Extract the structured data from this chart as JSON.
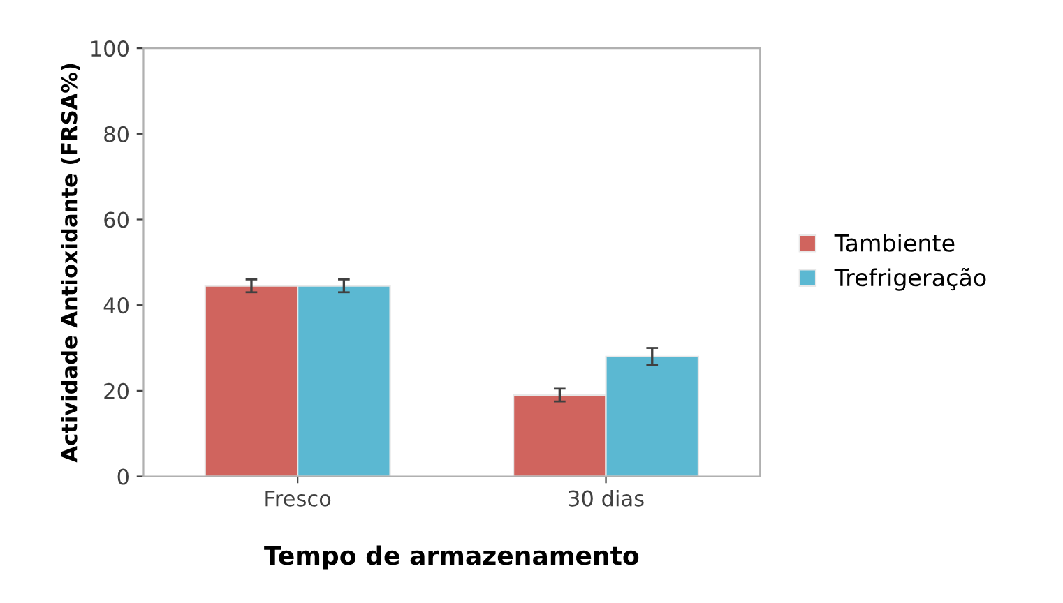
{
  "chart_data": {
    "type": "bar",
    "xlabel": "Tempo de armazenamento",
    "ylabel": "Actividade Antioxidante (FRSA%)",
    "categories": [
      "Fresco",
      "30 dias"
    ],
    "series": [
      {
        "name": "Tambiente",
        "color": "#d0645e",
        "values": [
          44.5,
          19
        ],
        "errors": [
          1.5,
          1.5
        ]
      },
      {
        "name": "Trefrigeração",
        "color": "#5bb8d2",
        "values": [
          44.5,
          28
        ],
        "errors": [
          1.5,
          2
        ]
      }
    ],
    "ylim": [
      0,
      100
    ],
    "yticks": [
      0,
      20,
      40,
      60,
      80,
      100
    ],
    "grid": false,
    "legend": "right"
  }
}
